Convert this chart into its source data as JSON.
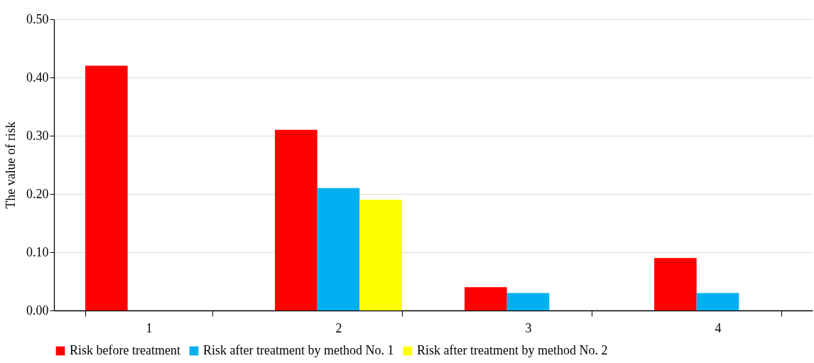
{
  "chart_data": {
    "type": "bar",
    "ylabel": "The value of risk",
    "categories": [
      "1",
      "2",
      "3",
      "4"
    ],
    "series": [
      {
        "name": "Risk before treatment",
        "color": "#ff0000",
        "values": [
          0.42,
          0.31,
          0.04,
          0.09
        ]
      },
      {
        "name": "Risk after treatment by method No. 1",
        "color": "#00b0f0",
        "values": [
          null,
          0.21,
          0.03,
          0.03
        ]
      },
      {
        "name": "Risk after treatment by method No. 2",
        "color": "#ffff00",
        "values": [
          null,
          0.19,
          null,
          null
        ]
      }
    ],
    "ylim": [
      0,
      0.5
    ],
    "yticks": [
      {
        "value": 0,
        "label": "0.00"
      },
      {
        "value": 0.1,
        "label": "0.10"
      },
      {
        "value": 0.2,
        "label": "0.20"
      },
      {
        "value": 0.3,
        "label": "0.30"
      },
      {
        "value": 0.4,
        "label": "0.40"
      },
      {
        "value": 0.5,
        "label": "0.50"
      }
    ],
    "grid": "y",
    "legend": "bottom"
  }
}
